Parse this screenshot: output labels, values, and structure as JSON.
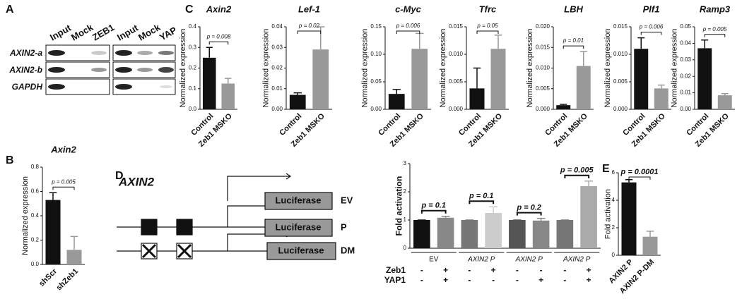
{
  "panel_labels": [
    "A",
    "B",
    "C",
    "D",
    "E"
  ],
  "gel": {
    "lanes": [
      "Input",
      "Mock",
      "ZEB1",
      "Input",
      "Mock",
      "YAP"
    ],
    "rows": [
      "AXIN2-a",
      "AXIN2-b",
      "GAPDH"
    ]
  },
  "diagram": {
    "gene": "AXIN2",
    "exons": [
      "1",
      "2"
    ],
    "constructs": [
      {
        "reporter": "Luciferase",
        "name": "EV"
      },
      {
        "reporter": "Luciferase",
        "name": "P"
      },
      {
        "reporter": "Luciferase",
        "name": "DM"
      }
    ]
  },
  "chart_data": [
    {
      "type": "bar",
      "title": "Axin2",
      "ylabel": "Normalized expression",
      "categories": [
        "Control",
        "Zeb1 MSKO"
      ],
      "values": [
        0.25,
        0.125
      ],
      "errors": [
        0.05,
        0.025
      ],
      "colors": [
        "#111111",
        "#999999"
      ],
      "ylim": [
        0,
        0.4
      ],
      "yticks": [
        {
          "value": 0,
          "label": "0.0"
        },
        0.1,
        0.2,
        0.3,
        0.4
      ],
      "p_values": [
        "p = 0.008"
      ]
    },
    {
      "type": "bar",
      "title": "Lef-1",
      "ylabel": "Normalized expression",
      "categories": [
        "Control",
        "Zeb1 MSKO"
      ],
      "values": [
        0.007,
        0.029
      ],
      "errors": [
        0.001,
        0.011
      ],
      "colors": [
        "#111111",
        "#999999"
      ],
      "ylim": [
        0,
        0.04
      ],
      "yticks": [
        {
          "value": 0,
          "label": "0.00"
        },
        0.01,
        0.02,
        0.03,
        0.04
      ],
      "p_values": [
        "p = 0.02"
      ]
    },
    {
      "type": "bar",
      "title": "c-Myc",
      "ylabel": "Normalized expression",
      "categories": [
        "Control",
        "Zeb1 MSKO"
      ],
      "values": [
        0.028,
        0.11
      ],
      "errors": [
        0.008,
        0.028
      ],
      "colors": [
        "#111111",
        "#999999"
      ],
      "ylim": [
        0,
        0.15
      ],
      "yticks": [
        {
          "value": 0,
          "label": "0.00"
        },
        0.05,
        {
          "value": 0.1,
          "label": "0.10"
        },
        0.15
      ],
      "p_values": [
        "p = 0.006"
      ]
    },
    {
      "type": "bar",
      "title": "Tfrc",
      "ylabel": "Normalized expression",
      "categories": [
        "Control",
        "Zeb1 MSKO"
      ],
      "values": [
        0.0038,
        0.011
      ],
      "errors": [
        0.0037,
        0.0025
      ],
      "colors": [
        "#111111",
        "#999999"
      ],
      "ylim": [
        0,
        0.015
      ],
      "yticks": [
        {
          "value": 0,
          "label": "0.000"
        },
        0.005,
        {
          "value": 0.01,
          "label": "0.010"
        },
        0.015
      ],
      "p_values": [
        "p = 0.05"
      ]
    },
    {
      "type": "bar",
      "title": "LBH",
      "ylabel": "Normalized expression",
      "categories": [
        "Control",
        "Zeb1 MSKO"
      ],
      "values": [
        0.001,
        0.0105
      ],
      "errors": [
        0.0002,
        0.0035
      ],
      "colors": [
        "#111111",
        "#999999"
      ],
      "ylim": [
        0,
        0.02
      ],
      "yticks": [
        {
          "value": 0,
          "label": "0.000"
        },
        0.005,
        {
          "value": 0.01,
          "label": "0.010"
        },
        0.015,
        {
          "value": 0.02,
          "label": "0.020"
        }
      ],
      "p_values": [
        "p = 0.01"
      ]
    },
    {
      "type": "bar",
      "title": "Plf1",
      "ylabel": "Normalized expression",
      "categories": [
        "Control",
        "Zeb1 MSKO"
      ],
      "values": [
        0.011,
        0.0038
      ],
      "errors": [
        0.002,
        0.0006
      ],
      "colors": [
        "#111111",
        "#999999"
      ],
      "ylim": [
        0,
        0.015
      ],
      "yticks": [
        {
          "value": 0,
          "label": "0.000"
        },
        0.005,
        {
          "value": 0.01,
          "label": "0.010"
        },
        0.015
      ],
      "p_values": [
        "p = 0.006"
      ]
    },
    {
      "type": "bar",
      "title": "Ramp3",
      "ylabel": "Normalized expression",
      "categories": [
        "Control",
        "Zeb1 MSKO"
      ],
      "values": [
        0.037,
        0.0085
      ],
      "errors": [
        0.005,
        0.001
      ],
      "colors": [
        "#111111",
        "#999999"
      ],
      "ylim": [
        0,
        0.05
      ],
      "yticks": [
        {
          "value": 0,
          "label": "0.00"
        },
        0.01,
        0.02,
        0.03,
        0.04,
        0.05
      ],
      "p_values": [
        "p = 0.005"
      ]
    },
    {
      "type": "bar",
      "title": "Axin2",
      "ylabel": "Normalized expression",
      "categories": [
        "shScr",
        "shZeb1"
      ],
      "values": [
        0.53,
        0.12
      ],
      "errors": [
        0.06,
        0.11
      ],
      "colors": [
        "#111111",
        "#999999"
      ],
      "ylim": [
        0,
        0.8
      ],
      "yticks": [
        {
          "value": 0,
          "label": "0.0"
        },
        0.2,
        0.4,
        0.6,
        0.8
      ],
      "p_values": [
        "p = 0.005"
      ]
    },
    {
      "type": "bar",
      "ylabel": "Fold activation",
      "values": [
        1,
        1.08,
        1,
        1.25,
        1,
        0.98,
        1,
        2.2
      ],
      "errors": [
        0,
        0.05,
        0,
        0.22,
        0,
        0.08,
        0,
        0.18
      ],
      "colors": [
        "#111111",
        "#888888",
        "#777777",
        "#cccccc",
        "#555555",
        "#888888",
        "#777777",
        "#aaaaaa"
      ],
      "ylim": [
        0,
        3
      ],
      "yticks": [
        0,
        1,
        2,
        3
      ],
      "p_values": [
        "p = 0.1",
        "p = 0.1",
        "p = 0.2",
        "p = 0.005"
      ],
      "groups": [
        "EV",
        "AXIN2 P",
        "AXIN2 P",
        "AXIN2 P"
      ],
      "conditions": [
        {
          "name": "Zeb1",
          "signs": [
            "-",
            "+",
            "-",
            "+",
            "-",
            "-",
            "-",
            "+"
          ]
        },
        {
          "name": "YAP1",
          "signs": [
            "-",
            "+",
            "-",
            "-",
            "-",
            "+",
            "-",
            "+"
          ]
        }
      ]
    },
    {
      "type": "bar",
      "ylabel": "Fold activation",
      "categories": [
        "AXIN2 P",
        "AXIN2 P-DM"
      ],
      "values": [
        5.3,
        1.35
      ],
      "errors": [
        0.2,
        0.4
      ],
      "colors": [
        "#111111",
        "#999999"
      ],
      "ylim": [
        0,
        6
      ],
      "yticks": [
        0,
        2,
        4,
        6
      ],
      "p_values": [
        "p = 0.0001"
      ]
    }
  ]
}
